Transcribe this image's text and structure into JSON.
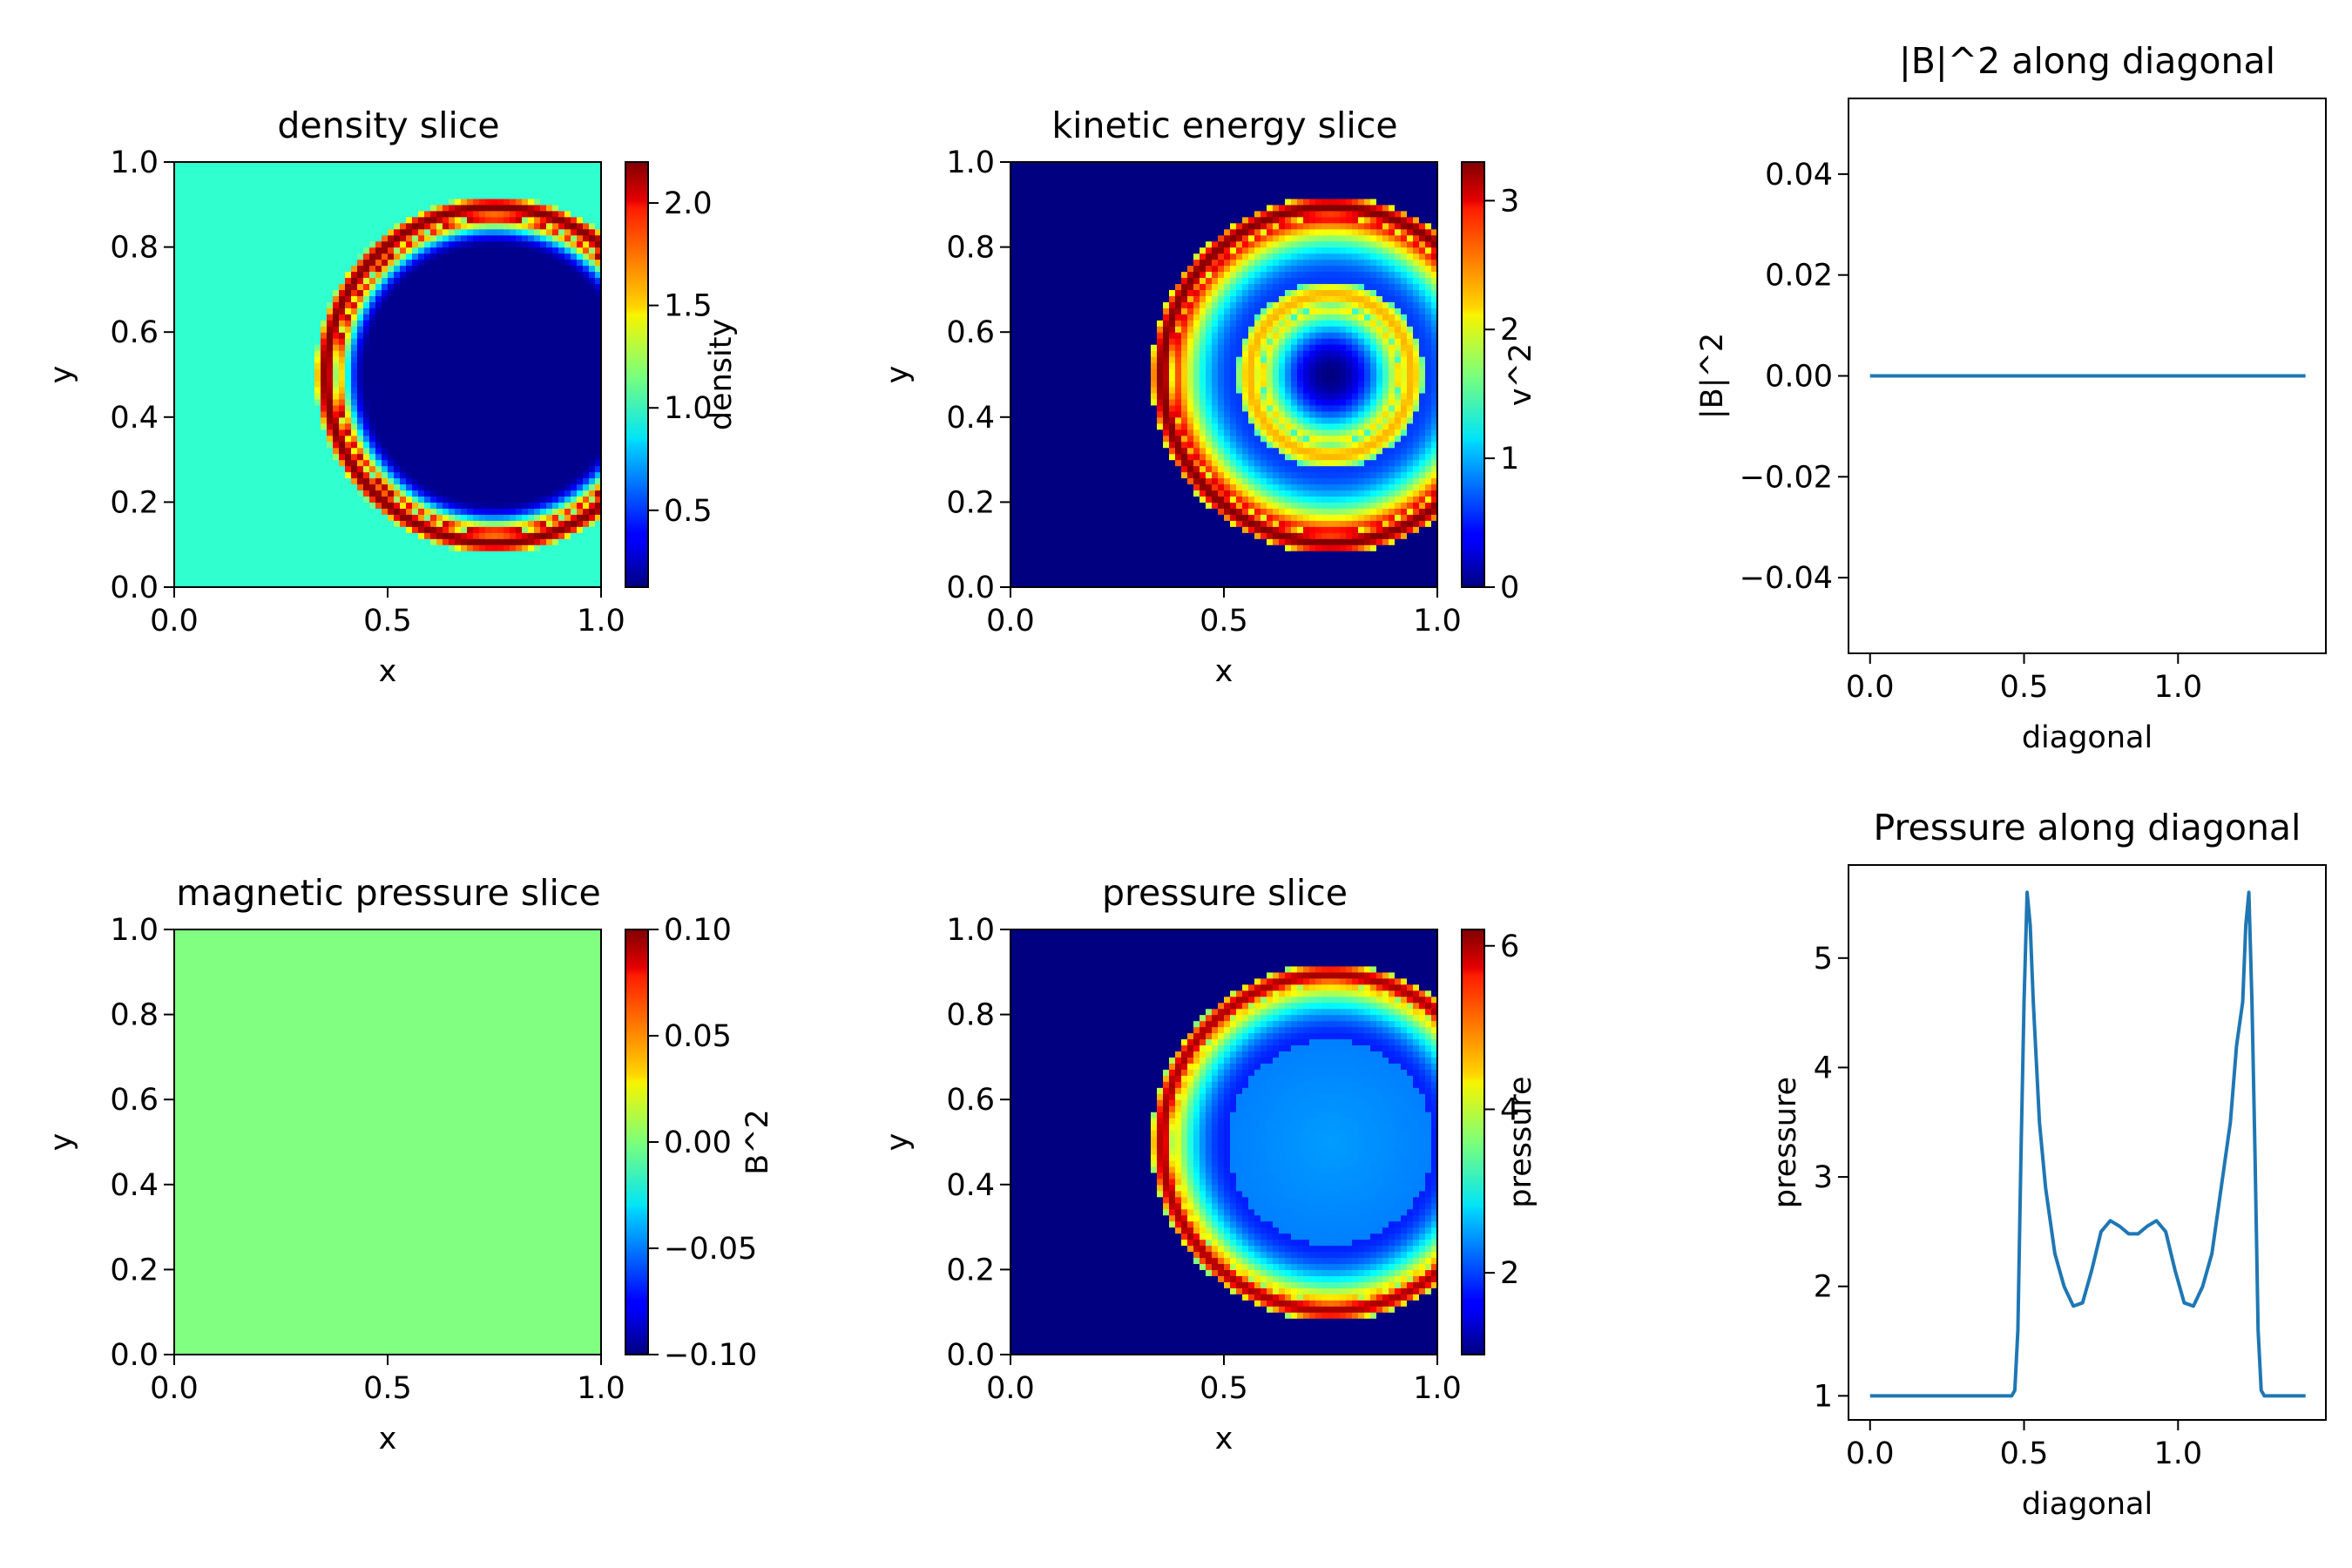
{
  "chart_data": [
    {
      "type": "heatmap",
      "title": "density slice",
      "xlabel": "x",
      "ylabel": "y",
      "xlim": [
        0,
        1
      ],
      "ylim": [
        0,
        1
      ],
      "xticks": [
        "0.0",
        "0.5",
        "1.0"
      ],
      "yticks": [
        "0.0",
        "0.2",
        "0.4",
        "0.6",
        "0.8",
        "1.0"
      ],
      "colorbar": {
        "label": "density",
        "colormap": "jet",
        "range": [
          0.125,
          2.2
        ],
        "ticks": [
          "0.5",
          "1.0",
          "1.5",
          "2.0"
        ]
      },
      "field": {
        "background": 1.0,
        "center": [
          0.75,
          0.5
        ],
        "shell_radius": 0.4,
        "shell_peak": 2.2,
        "interior_min": 0.15
      }
    },
    {
      "type": "heatmap",
      "title": "kinetic energy slice",
      "xlabel": "x",
      "ylabel": "y",
      "xlim": [
        0,
        1
      ],
      "ylim": [
        0,
        1
      ],
      "xticks": [
        "0.0",
        "0.5",
        "1.0"
      ],
      "yticks": [
        "0.0",
        "0.2",
        "0.4",
        "0.6",
        "0.8",
        "1.0"
      ],
      "colorbar": {
        "label": "v^2",
        "colormap": "jet",
        "range": [
          0,
          3.3
        ],
        "ticks": [
          "0",
          "1",
          "2",
          "3"
        ]
      },
      "field": {
        "background": 0.0,
        "center": [
          0.75,
          0.5
        ],
        "shell_radius": 0.4,
        "shell_peak": 3.3,
        "inner_ring_radius": 0.2,
        "inner_ring_peak": 2.3
      }
    },
    {
      "type": "line",
      "title": "|B|^2 along diagonal",
      "xlabel": "diagonal",
      "ylabel": "|B|^2",
      "xlim": [
        -0.07,
        1.48
      ],
      "ylim": [
        -0.055,
        0.055
      ],
      "xticks": [
        "0.0",
        "0.5",
        "1.0"
      ],
      "yticks": [
        "0.04",
        "0.02",
        "0.00",
        "−0.02",
        "−0.04"
      ],
      "series": [
        {
          "color": "#1f77b4",
          "x": [
            0,
            1.414
          ],
          "y": [
            0,
            0
          ]
        }
      ]
    },
    {
      "type": "heatmap",
      "title": "magnetic pressure slice",
      "xlabel": "x",
      "ylabel": "y",
      "xlim": [
        0,
        1
      ],
      "ylim": [
        0,
        1
      ],
      "xticks": [
        "0.0",
        "0.5",
        "1.0"
      ],
      "yticks": [
        "0.0",
        "0.2",
        "0.4",
        "0.6",
        "0.8",
        "1.0"
      ],
      "colorbar": {
        "label": "B^2",
        "colormap": "jet",
        "range": [
          -0.1,
          0.1
        ],
        "ticks": [
          "0.10",
          "0.05",
          "0.00",
          "−0.05",
          "−0.10"
        ]
      },
      "field": {
        "uniform_value": 0.0
      }
    },
    {
      "type": "heatmap",
      "title": "pressure slice",
      "xlabel": "x",
      "ylabel": "y",
      "xlim": [
        0,
        1
      ],
      "ylim": [
        0,
        1
      ],
      "xticks": [
        "0.0",
        "0.5",
        "1.0"
      ],
      "yticks": [
        "0.0",
        "0.2",
        "0.4",
        "0.6",
        "0.8",
        "1.0"
      ],
      "colorbar": {
        "label": "pressure",
        "colormap": "jet",
        "range": [
          1,
          6.2
        ],
        "ticks": [
          "2",
          "4",
          "6"
        ]
      },
      "field": {
        "background": 1.0,
        "center": [
          0.75,
          0.5
        ],
        "shell_radius": 0.4,
        "shell_peak": 6.0,
        "interior_plateau": 2.5
      }
    },
    {
      "type": "line",
      "title": "Pressure along diagonal",
      "xlabel": "diagonal",
      "ylabel": "pressure",
      "xlim": [
        -0.07,
        1.48
      ],
      "ylim": [
        0.78,
        5.85
      ],
      "xticks": [
        "0.0",
        "0.5",
        "1.0"
      ],
      "yticks": [
        "1",
        "2",
        "3",
        "4",
        "5"
      ],
      "series": [
        {
          "color": "#1f77b4",
          "x": [
            0,
            0.46,
            0.47,
            0.48,
            0.49,
            0.5,
            0.51,
            0.52,
            0.53,
            0.55,
            0.57,
            0.6,
            0.63,
            0.66,
            0.69,
            0.72,
            0.75,
            0.78,
            0.81,
            0.84,
            0.87,
            0.9,
            0.93,
            0.96,
            0.99,
            1.02,
            1.05,
            1.08,
            1.11,
            1.14,
            1.17,
            1.19,
            1.21,
            1.22,
            1.23,
            1.24,
            1.25,
            1.26,
            1.27,
            1.28,
            1.3,
            1.414
          ],
          "y": [
            1,
            1,
            1.05,
            1.6,
            3.2,
            4.6,
            5.6,
            5.3,
            4.6,
            3.5,
            2.9,
            2.3,
            2.0,
            1.82,
            1.85,
            2.15,
            2.5,
            2.6,
            2.55,
            2.48,
            2.48,
            2.55,
            2.6,
            2.5,
            2.15,
            1.85,
            1.82,
            2.0,
            2.3,
            2.9,
            3.5,
            4.2,
            4.6,
            5.3,
            5.6,
            4.6,
            3.2,
            1.6,
            1.05,
            1.0,
            1.0,
            1.0
          ]
        }
      ]
    }
  ]
}
